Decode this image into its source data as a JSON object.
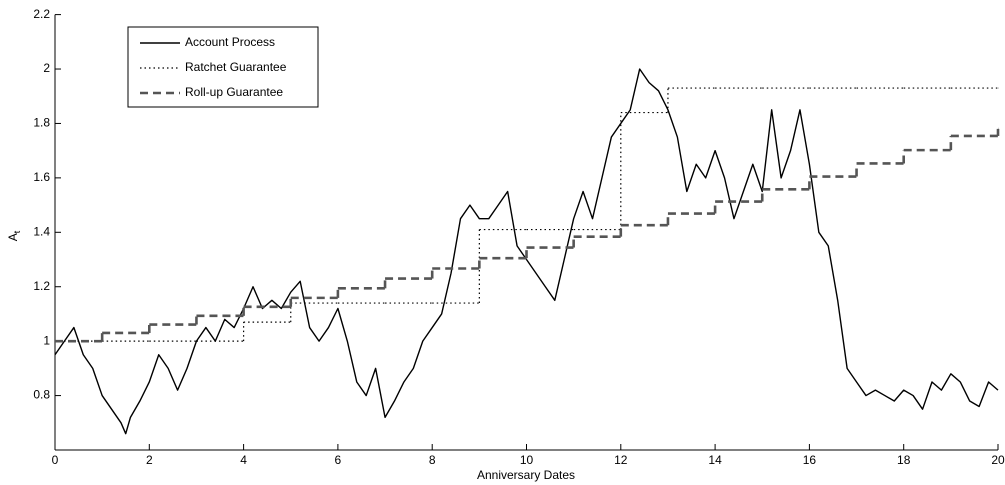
{
  "chart_data": {
    "type": "line",
    "x_label": "Anniversary Dates",
    "y_label": "A",
    "y_label_subscript": "t",
    "xlim": [
      0,
      20
    ],
    "xticks": [
      0,
      2,
      4,
      6,
      8,
      10,
      12,
      14,
      16,
      18,
      20
    ],
    "ylim": [
      0.6,
      2.2
    ],
    "yticks": [
      0.8,
      1,
      1.2,
      1.4,
      1.6,
      1.8,
      2,
      2.2
    ],
    "grid": false,
    "legend": "upper left",
    "series": [
      {
        "name": "Account Process",
        "color": "#000000",
        "style": "solid",
        "step": false,
        "x": [
          0,
          0.2,
          0.4,
          0.6,
          0.8,
          1,
          1.2,
          1.4,
          1.5,
          1.6,
          1.8,
          2,
          2.2,
          2.4,
          2.6,
          2.8,
          3,
          3.2,
          3.4,
          3.6,
          3.8,
          4,
          4.2,
          4.4,
          4.6,
          4.8,
          5,
          5.2,
          5.4,
          5.6,
          5.8,
          6,
          6.2,
          6.4,
          6.6,
          6.8,
          7,
          7.2,
          7.4,
          7.6,
          7.8,
          8,
          8.2,
          8.4,
          8.6,
          8.8,
          9,
          9.2,
          9.4,
          9.6,
          9.8,
          10,
          10.2,
          10.4,
          10.6,
          10.8,
          11,
          11.2,
          11.4,
          11.6,
          11.8,
          12,
          12.2,
          12.4,
          12.6,
          12.8,
          13,
          13.2,
          13.4,
          13.6,
          13.8,
          14,
          14.2,
          14.4,
          14.6,
          14.8,
          15,
          15.2,
          15.4,
          15.6,
          15.8,
          16,
          16.2,
          16.4,
          16.6,
          16.8,
          17,
          17.2,
          17.4,
          17.6,
          17.8,
          18,
          18.2,
          18.4,
          18.6,
          18.8,
          19,
          19.2,
          19.4,
          19.6,
          19.8,
          20
        ],
        "values": [
          0.95,
          1.0,
          1.05,
          0.95,
          0.9,
          0.8,
          0.75,
          0.7,
          0.66,
          0.72,
          0.78,
          0.85,
          0.95,
          0.9,
          0.82,
          0.9,
          1.0,
          1.05,
          1.0,
          1.08,
          1.05,
          1.12,
          1.2,
          1.12,
          1.15,
          1.12,
          1.18,
          1.22,
          1.05,
          1.0,
          1.05,
          1.12,
          1.0,
          0.85,
          0.8,
          0.9,
          0.72,
          0.78,
          0.85,
          0.9,
          1.0,
          1.05,
          1.1,
          1.25,
          1.45,
          1.5,
          1.45,
          1.45,
          1.5,
          1.55,
          1.35,
          1.3,
          1.25,
          1.2,
          1.15,
          1.3,
          1.45,
          1.55,
          1.45,
          1.6,
          1.75,
          1.8,
          1.85,
          2.0,
          1.95,
          1.92,
          1.85,
          1.75,
          1.55,
          1.65,
          1.6,
          1.7,
          1.6,
          1.45,
          1.55,
          1.65,
          1.55,
          1.85,
          1.6,
          1.7,
          1.85,
          1.65,
          1.4,
          1.35,
          1.15,
          0.9,
          0.85,
          0.8,
          0.82,
          0.8,
          0.78,
          0.82,
          0.8,
          0.75,
          0.85,
          0.82,
          0.88,
          0.85,
          0.78,
          0.76,
          0.85,
          0.82
        ]
      },
      {
        "name": "Ratchet Guarantee",
        "color": "#000000",
        "style": "dotted",
        "step": true,
        "x": [
          0,
          1,
          2,
          3,
          4,
          5,
          6,
          7,
          8,
          9,
          10,
          11,
          12,
          13,
          14,
          15,
          16,
          17,
          18,
          19,
          20
        ],
        "values": [
          1.0,
          1.0,
          1.0,
          1.0,
          1.07,
          1.14,
          1.14,
          1.14,
          1.14,
          1.41,
          1.41,
          1.41,
          1.84,
          1.93,
          1.93,
          1.93,
          1.93,
          1.93,
          1.93,
          1.93,
          1.93
        ]
      },
      {
        "name": "Roll-up Guarantee",
        "color": "#555555",
        "style": "dashed",
        "step": true,
        "x": [
          0,
          1,
          2,
          3,
          4,
          5,
          6,
          7,
          8,
          9,
          10,
          11,
          12,
          13,
          14,
          15,
          16,
          17,
          18,
          19,
          20
        ],
        "values": [
          1.0,
          1.03,
          1.061,
          1.093,
          1.126,
          1.159,
          1.194,
          1.23,
          1.267,
          1.305,
          1.344,
          1.384,
          1.426,
          1.469,
          1.513,
          1.558,
          1.605,
          1.653,
          1.702,
          1.754,
          1.78
        ]
      }
    ]
  }
}
